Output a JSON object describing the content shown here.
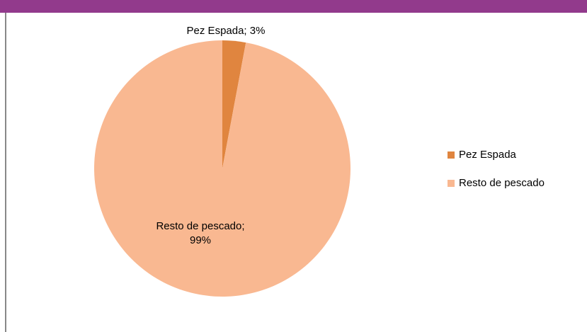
{
  "chart_data": {
    "type": "pie",
    "categories": [
      "Pez Espada",
      "Resto de pescado"
    ],
    "values": [
      3,
      99
    ],
    "value_labels": [
      "Pez Espada; 3%",
      "Resto de pescado; 99%"
    ],
    "colors": [
      "#e0853f",
      "#f9b891"
    ],
    "legend": "right"
  }
}
